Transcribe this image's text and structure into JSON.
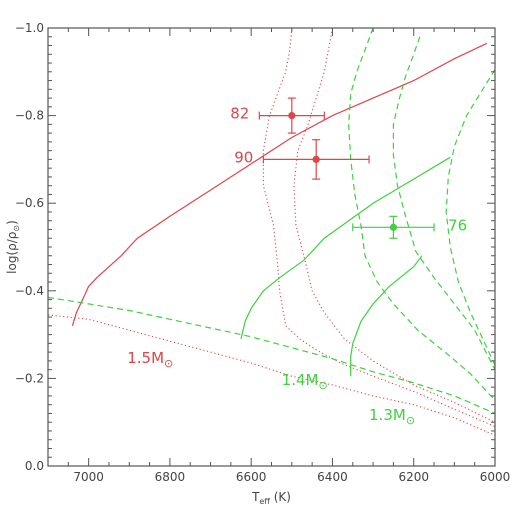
{
  "chart_data": {
    "type": "line",
    "xlabel": "T",
    "xlabel_sub": "eff",
    "xlabel_unit": "(K)",
    "ylabel": "log(ρ/ρ",
    "ylabel_sym": "⊙",
    "ylabel_end": ")",
    "xlim": [
      7100,
      6000
    ],
    "ylim": [
      0.0,
      -1.0
    ],
    "x_ticks": [
      7000,
      6800,
      6600,
      6400,
      6200,
      6000
    ],
    "y_ticks": [
      0.0,
      -0.2,
      -0.4,
      -0.6,
      -0.8,
      -1.0
    ],
    "x_tick_labels": [
      "7000",
      "6800",
      "6600",
      "6400",
      "6200",
      "6000"
    ],
    "y_tick_labels": [
      "0.0",
      "−0.2",
      "−0.4",
      "−0.6",
      "−0.8",
      "−1.0"
    ],
    "colors": {
      "red": "#e0454a",
      "green": "#3fd13f",
      "axis": "#555555"
    },
    "series": [
      {
        "color": "red",
        "style": "solid",
        "x": [
          7040,
          7030,
          7010,
          7000,
          6980,
          6950,
          6920,
          6880,
          6800,
          6700,
          6600,
          6500,
          6400,
          6300,
          6200,
          6100,
          6020
        ],
        "y": [
          -0.32,
          -0.35,
          -0.39,
          -0.41,
          -0.43,
          -0.455,
          -0.48,
          -0.52,
          -0.57,
          -0.63,
          -0.69,
          -0.75,
          -0.8,
          -0.84,
          -0.88,
          -0.93,
          -0.965
        ]
      },
      {
        "color": "red",
        "style": "dotted",
        "x": [
          7100,
          7000,
          6900,
          6800,
          6700,
          6600,
          6500,
          6400,
          6300,
          6200,
          6100,
          6000
        ],
        "y": [
          -0.345,
          -0.335,
          -0.31,
          -0.285,
          -0.26,
          -0.235,
          -0.205,
          -0.185,
          -0.16,
          -0.14,
          -0.11,
          -0.07
        ]
      },
      {
        "color": "red",
        "style": "dotted",
        "x": [
          6500,
          6505,
          6515,
          6535,
          6555,
          6570,
          6570,
          6545,
          6535,
          6530,
          6515
        ],
        "y": [
          -1.0,
          -0.95,
          -0.9,
          -0.85,
          -0.8,
          -0.72,
          -0.64,
          -0.55,
          -0.46,
          -0.4,
          -0.32
        ],
        "x2": [
          6515,
          6480,
          6440,
          6380,
          6300,
          6200,
          6100,
          6000
        ],
        "y2": [
          -0.32,
          -0.29,
          -0.265,
          -0.235,
          -0.205,
          -0.17,
          -0.13,
          -0.09
        ]
      },
      {
        "color": "red",
        "style": "dotted",
        "x": [
          6400,
          6410,
          6420,
          6440,
          6460,
          6485,
          6495,
          6490,
          6465,
          6450,
          6420,
          6370,
          6300,
          6200,
          6100,
          6000
        ],
        "y": [
          -1.0,
          -0.95,
          -0.9,
          -0.84,
          -0.78,
          -0.72,
          -0.64,
          -0.55,
          -0.46,
          -0.4,
          -0.35,
          -0.29,
          -0.24,
          -0.185,
          -0.145,
          -0.1
        ]
      },
      {
        "color": "green",
        "style": "solid",
        "x": [
          6625,
          6615,
          6600,
          6570,
          6530,
          6470,
          6420,
          6360,
          6300,
          6200,
          6110
        ],
        "y": [
          -0.29,
          -0.33,
          -0.36,
          -0.4,
          -0.43,
          -0.47,
          -0.52,
          -0.56,
          -0.6,
          -0.655,
          -0.705
        ]
      },
      {
        "color": "green",
        "style": "solid",
        "x": [
          6355,
          6355,
          6350,
          6330,
          6300,
          6260,
          6200,
          6180
        ],
        "y": [
          -0.205,
          -0.25,
          -0.28,
          -0.33,
          -0.37,
          -0.41,
          -0.455,
          -0.48
        ]
      },
      {
        "color": "green",
        "style": "dashed",
        "x": [
          7100,
          7000,
          6900,
          6800,
          6700,
          6600,
          6500,
          6400,
          6300,
          6200,
          6100,
          6000
        ],
        "y": [
          -0.385,
          -0.37,
          -0.355,
          -0.335,
          -0.315,
          -0.295,
          -0.27,
          -0.245,
          -0.215,
          -0.19,
          -0.16,
          -0.12
        ]
      },
      {
        "color": "green",
        "style": "dashed",
        "x": [
          6300,
          6320,
          6340,
          6355,
          6360,
          6355,
          6345,
          6330,
          6320,
          6290,
          6250,
          6190,
          6110,
          6060,
          6000
        ],
        "y": [
          -1.0,
          -0.95,
          -0.9,
          -0.85,
          -0.78,
          -0.7,
          -0.62,
          -0.55,
          -0.48,
          -0.42,
          -0.37,
          -0.31,
          -0.25,
          -0.21,
          -0.15
        ]
      },
      {
        "color": "green",
        "style": "dashed",
        "x": [
          6185,
          6200,
          6220,
          6235,
          6250,
          6250,
          6240,
          6220,
          6195,
          6150,
          6100,
          6050,
          6000
        ],
        "y": [
          -0.98,
          -0.94,
          -0.89,
          -0.84,
          -0.78,
          -0.71,
          -0.64,
          -0.57,
          -0.49,
          -0.43,
          -0.37,
          -0.31,
          -0.22
        ]
      },
      {
        "color": "green",
        "style": "dashed",
        "x": [
          6000,
          6030,
          6070,
          6100,
          6115,
          6120,
          6110,
          6090,
          6060,
          6020,
          6000
        ],
        "y": [
          -0.905,
          -0.86,
          -0.8,
          -0.73,
          -0.66,
          -0.58,
          -0.5,
          -0.42,
          -0.35,
          -0.27,
          -0.23
        ]
      }
    ],
    "points": [
      {
        "label": "82",
        "x": 6500,
        "y": -0.8,
        "xerr": 80,
        "yerr": 0.04,
        "color": "red"
      },
      {
        "label": "90",
        "x": 6440,
        "y": -0.7,
        "xerr": 130,
        "yerr": 0.045,
        "color": "red"
      },
      {
        "label": "76",
        "x": 6250,
        "y": -0.545,
        "xerr": 100,
        "yerr": 0.025,
        "color": "green"
      }
    ],
    "annotations": [
      {
        "base": "1.5M",
        "sym": "⊙",
        "color": "red",
        "x": 6905,
        "y": -0.235
      },
      {
        "base": "1.4M",
        "sym": "⊙",
        "color": "green",
        "x": 6525,
        "y": -0.185
      },
      {
        "base": "1.3M",
        "sym": "⊙",
        "color": "green",
        "x": 6310,
        "y": -0.105
      }
    ]
  }
}
